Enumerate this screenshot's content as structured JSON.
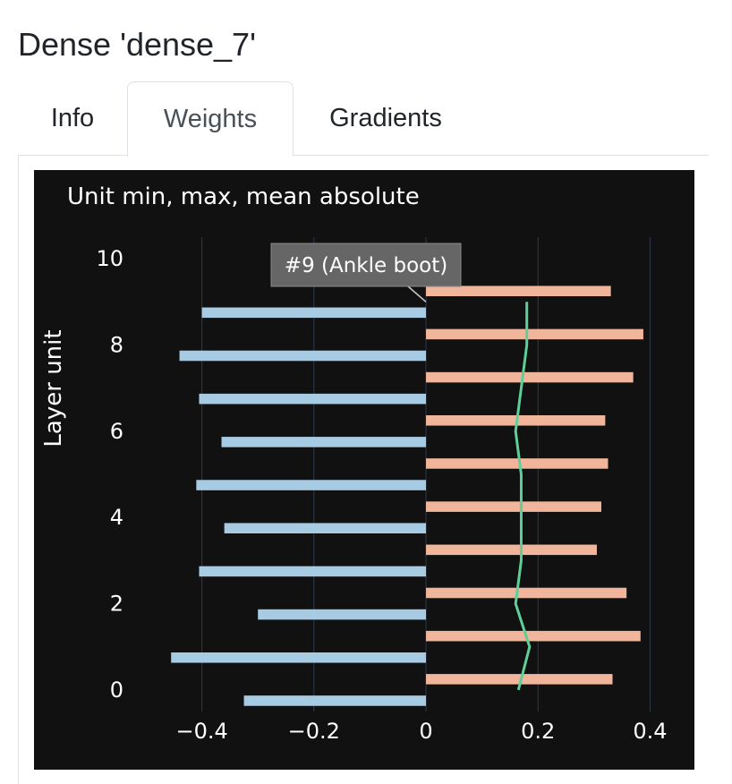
{
  "layer": {
    "title": "Dense 'dense_7'"
  },
  "tabs": [
    {
      "label": "Info",
      "active": false
    },
    {
      "label": "Weights",
      "active": true
    },
    {
      "label": "Gradients",
      "active": false
    }
  ],
  "chart_data": {
    "type": "bar",
    "title": "Unit min, max, mean absolute",
    "ylabel": "Layer unit",
    "xlabel": "",
    "orientation": "horizontal",
    "xlim": [
      -0.5,
      0.46
    ],
    "ylim": [
      -0.5,
      10.5
    ],
    "xticks": [
      {
        "value": -0.4,
        "label": "−0.4"
      },
      {
        "value": -0.2,
        "label": "−0.2"
      },
      {
        "value": 0,
        "label": "0"
      },
      {
        "value": 0.2,
        "label": "0.2"
      },
      {
        "value": 0.4,
        "label": "0.4"
      }
    ],
    "yticks": [
      {
        "value": 0,
        "label": "0"
      },
      {
        "value": 2,
        "label": "2"
      },
      {
        "value": 4,
        "label": "4"
      },
      {
        "value": 6,
        "label": "6"
      },
      {
        "value": 8,
        "label": "8"
      },
      {
        "value": 10,
        "label": "10"
      }
    ],
    "units": [
      0,
      1,
      2,
      3,
      4,
      5,
      6,
      7,
      8,
      9
    ],
    "min": [
      -0.325,
      -0.455,
      -0.3,
      -0.405,
      -0.36,
      -0.41,
      -0.365,
      -0.405,
      -0.44,
      -0.4
    ],
    "max": [
      0.333,
      0.383,
      0.358,
      0.305,
      0.313,
      0.325,
      0.32,
      0.37,
      0.388,
      0.33
    ],
    "mean_abs": [
      0.165,
      0.185,
      0.16,
      0.17,
      0.17,
      0.17,
      0.16,
      0.17,
      0.18,
      0.18
    ],
    "colors": {
      "min_bar": "#a6cbe3",
      "max_bar": "#f0b59a",
      "mean_line": "#5fcf9a",
      "background": "#111111",
      "grid": "#2e3b4e",
      "text": "#ffffff"
    },
    "annotation": {
      "unit": 9,
      "text": "#9 (Ankle boot)"
    },
    "grid": true
  }
}
